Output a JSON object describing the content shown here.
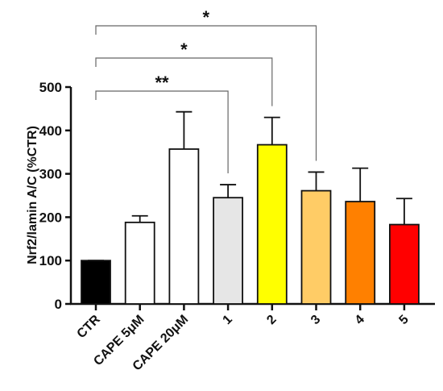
{
  "chart_data": {
    "type": "bar",
    "categories": [
      "CTR",
      "CAPE 5μM",
      "CAPE 20μM",
      "1",
      "2",
      "3",
      "4",
      "5"
    ],
    "values": [
      100,
      188,
      357,
      245,
      367,
      261,
      236,
      183
    ],
    "error_upper": [
      100,
      203,
      443,
      275,
      430,
      304,
      313,
      243
    ],
    "colors": [
      "#000000",
      "#ffffff",
      "#ffffff",
      "#e6e6e6",
      "#ffff00",
      "#ffcc66",
      "#ff8000",
      "#ff0000"
    ],
    "ylabel": "Nrf2/lamin A/C (%CTR)",
    "xlabel": "",
    "title": "",
    "ylim": [
      0,
      500
    ],
    "yticks": [
      0,
      100,
      200,
      300,
      400,
      500
    ],
    "grid": false,
    "significance": [
      {
        "from": "CTR",
        "to": "1",
        "label": "**"
      },
      {
        "from": "CTR",
        "to": "2",
        "label": "*"
      },
      {
        "from": "CTR",
        "to": "3",
        "label": "*"
      }
    ]
  }
}
